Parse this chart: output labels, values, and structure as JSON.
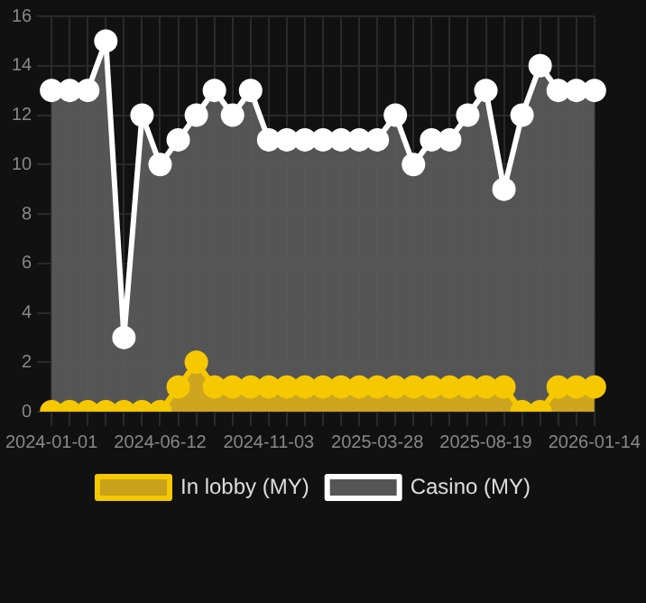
{
  "chart_data": {
    "type": "area",
    "categories": [
      "2024-01-01",
      null,
      null,
      null,
      null,
      null,
      "2024-06-12",
      null,
      null,
      null,
      null,
      null,
      "2024-11-03",
      null,
      null,
      null,
      null,
      null,
      "2025-03-28",
      null,
      null,
      null,
      null,
      null,
      "2025-08-19",
      null,
      null,
      null,
      null,
      null,
      "2026-01-14"
    ],
    "series": [
      {
        "name": "In lobby (MY)",
        "color": "#f5c800",
        "values": [
          0,
          0,
          0,
          0,
          0,
          0,
          0,
          1,
          2,
          1,
          1,
          1,
          1,
          1,
          1,
          1,
          1,
          1,
          1,
          1,
          1,
          1,
          1,
          1,
          1,
          1,
          0,
          0,
          1,
          1,
          1
        ]
      },
      {
        "name": "Casino (MY)",
        "color": "#ffffff",
        "values": [
          13,
          13,
          13,
          15,
          3,
          12,
          10,
          11,
          12,
          13,
          12,
          13,
          11,
          11,
          11,
          11,
          11,
          11,
          11,
          12,
          10,
          11,
          11,
          12,
          13,
          9,
          12,
          14,
          13,
          13,
          13
        ]
      }
    ],
    "ylim": [
      0,
      16
    ],
    "yticks": [
      0,
      2,
      4,
      6,
      8,
      10,
      12,
      14,
      16
    ],
    "grid": true,
    "legend": "bottom",
    "marker": "circle",
    "line_style": "solid"
  }
}
